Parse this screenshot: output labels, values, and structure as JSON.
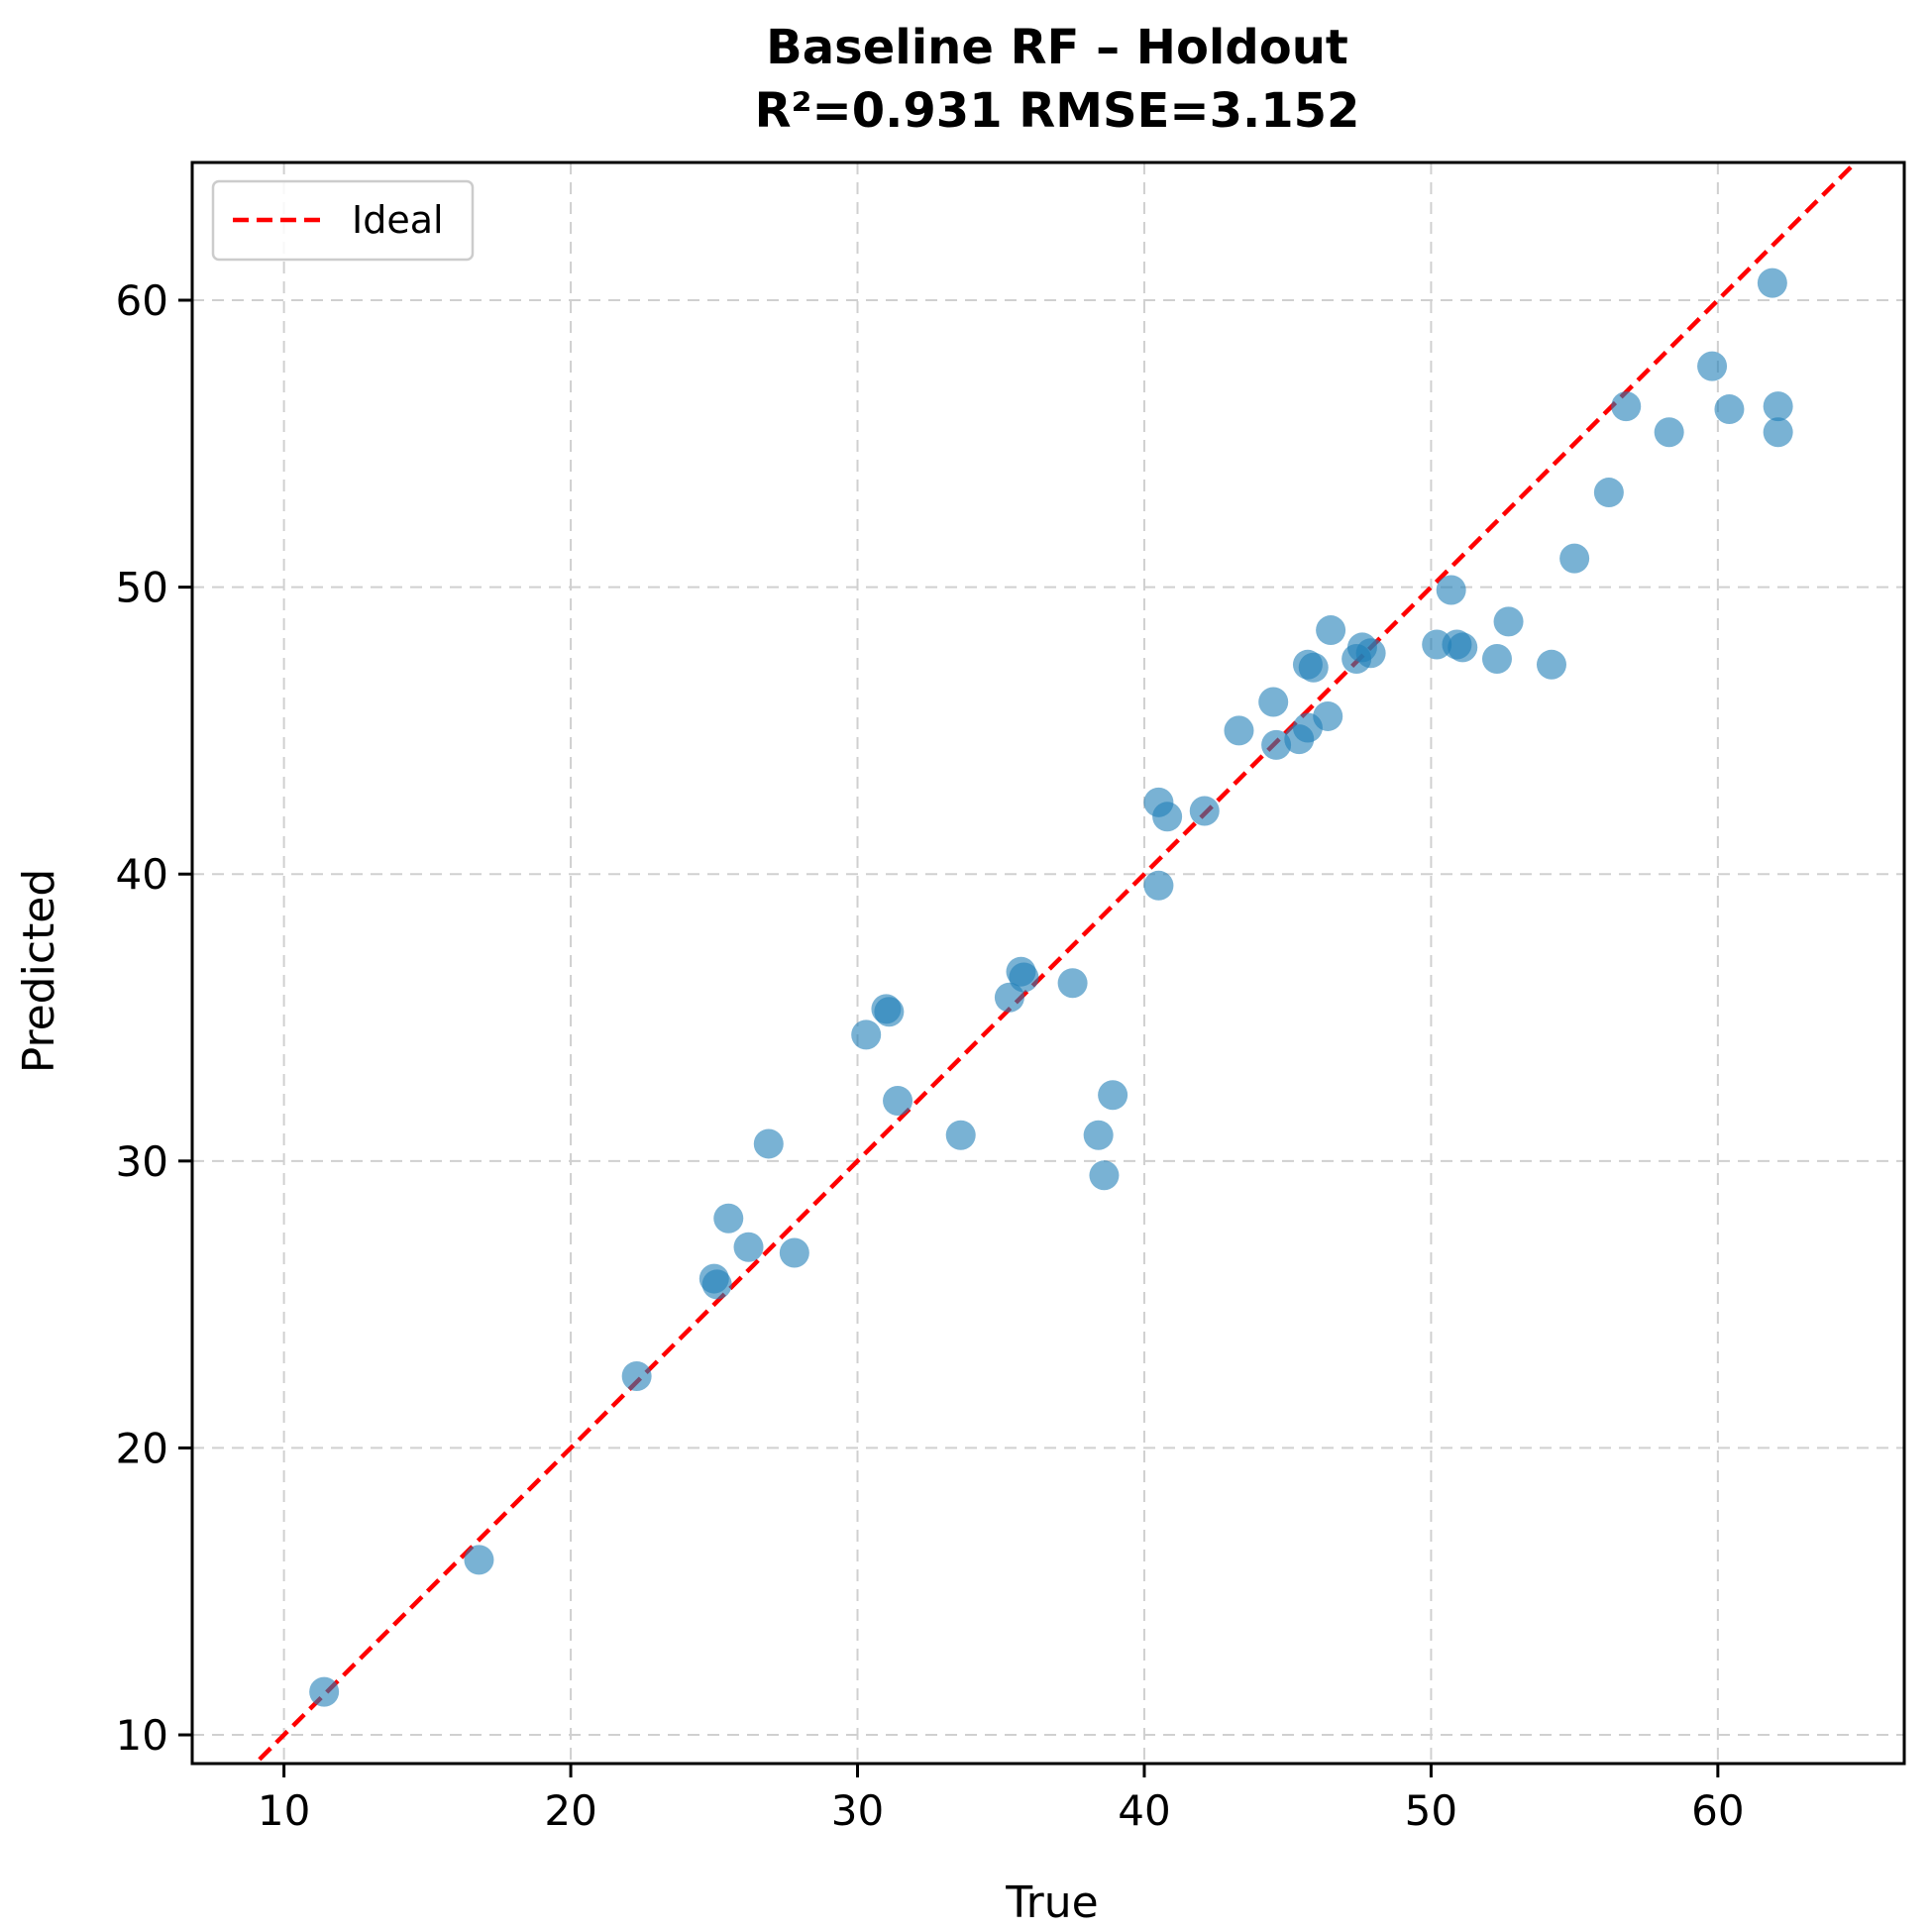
{
  "chart_data": {
    "type": "scatter",
    "title_line1": "Baseline RF – Holdout",
    "title_line2": "R²=0.931  RMSE=3.152",
    "xlabel": "True",
    "ylabel": "Predicted",
    "xlim": [
      6.8,
      66.5
    ],
    "ylim": [
      9.0,
      64.8
    ],
    "xticks": [
      10,
      20,
      30,
      40,
      50,
      60
    ],
    "yticks": [
      10,
      20,
      30,
      40,
      50,
      60
    ],
    "grid": true,
    "legend": {
      "placement": "top-left",
      "entries": [
        "Ideal"
      ]
    },
    "ideal_line": {
      "name": "Ideal",
      "color": "#ff0000",
      "style": "dashed"
    },
    "point_color": "#1f7fb8",
    "points": [
      {
        "x": 11.4,
        "y": 11.5
      },
      {
        "x": 16.8,
        "y": 16.1
      },
      {
        "x": 22.3,
        "y": 22.5
      },
      {
        "x": 25.0,
        "y": 25.9
      },
      {
        "x": 25.1,
        "y": 25.7
      },
      {
        "x": 25.5,
        "y": 28.0
      },
      {
        "x": 26.2,
        "y": 27.0
      },
      {
        "x": 26.9,
        "y": 30.6
      },
      {
        "x": 27.8,
        "y": 26.8
      },
      {
        "x": 30.3,
        "y": 34.4
      },
      {
        "x": 31.0,
        "y": 35.3
      },
      {
        "x": 31.1,
        "y": 35.2
      },
      {
        "x": 31.4,
        "y": 32.1
      },
      {
        "x": 33.6,
        "y": 30.9
      },
      {
        "x": 35.3,
        "y": 35.7
      },
      {
        "x": 35.7,
        "y": 36.6
      },
      {
        "x": 35.8,
        "y": 36.4
      },
      {
        "x": 37.5,
        "y": 36.2
      },
      {
        "x": 38.4,
        "y": 30.9
      },
      {
        "x": 38.6,
        "y": 29.5
      },
      {
        "x": 38.9,
        "y": 32.3
      },
      {
        "x": 40.5,
        "y": 39.6
      },
      {
        "x": 40.5,
        "y": 42.5
      },
      {
        "x": 40.8,
        "y": 42.0
      },
      {
        "x": 42.1,
        "y": 42.2
      },
      {
        "x": 43.3,
        "y": 45.0
      },
      {
        "x": 44.5,
        "y": 46.0
      },
      {
        "x": 44.6,
        "y": 44.5
      },
      {
        "x": 45.4,
        "y": 44.7
      },
      {
        "x": 45.7,
        "y": 45.1
      },
      {
        "x": 45.7,
        "y": 47.3
      },
      {
        "x": 45.9,
        "y": 47.2
      },
      {
        "x": 46.4,
        "y": 45.5
      },
      {
        "x": 46.5,
        "y": 48.5
      },
      {
        "x": 47.4,
        "y": 47.5
      },
      {
        "x": 47.6,
        "y": 47.9
      },
      {
        "x": 47.9,
        "y": 47.7
      },
      {
        "x": 50.2,
        "y": 48.0
      },
      {
        "x": 50.9,
        "y": 48.0
      },
      {
        "x": 51.1,
        "y": 47.9
      },
      {
        "x": 50.7,
        "y": 49.9
      },
      {
        "x": 52.3,
        "y": 47.5
      },
      {
        "x": 52.7,
        "y": 48.8
      },
      {
        "x": 54.2,
        "y": 47.3
      },
      {
        "x": 55.0,
        "y": 51.0
      },
      {
        "x": 56.2,
        "y": 53.3
      },
      {
        "x": 56.8,
        "y": 56.3
      },
      {
        "x": 58.3,
        "y": 55.4
      },
      {
        "x": 59.8,
        "y": 57.7
      },
      {
        "x": 60.4,
        "y": 56.2
      },
      {
        "x": 61.9,
        "y": 60.6
      },
      {
        "x": 62.1,
        "y": 56.3
      },
      {
        "x": 62.1,
        "y": 55.4
      }
    ]
  }
}
